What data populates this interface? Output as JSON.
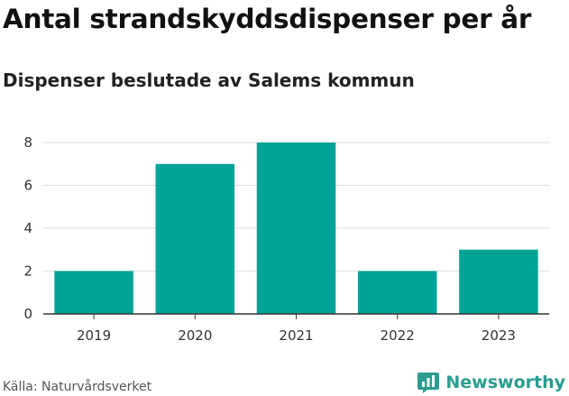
{
  "header": {
    "title": "Antal strandskyddsdispenser per år",
    "subtitle": "Dispenser beslutade av Salems kommun"
  },
  "footer": {
    "source": "Källa: Naturvårdsverket",
    "brand": "Newsworthy",
    "brand_icon": "newsworthy-logo-icon"
  },
  "colors": {
    "bar": "#00a398",
    "grid": "#dedede",
    "axis": "#333333",
    "brand": "#2a9d8f"
  },
  "chart_data": {
    "type": "bar",
    "title": "Antal strandskyddsdispenser per år",
    "subtitle": "Dispenser beslutade av Salems kommun",
    "categories": [
      "2019",
      "2020",
      "2021",
      "2022",
      "2023"
    ],
    "values": [
      2,
      7,
      8,
      2,
      3
    ],
    "xlabel": "",
    "ylabel": "",
    "ylim": [
      0,
      8
    ],
    "yticks": [
      0,
      2,
      4,
      6,
      8
    ],
    "grid": true
  }
}
